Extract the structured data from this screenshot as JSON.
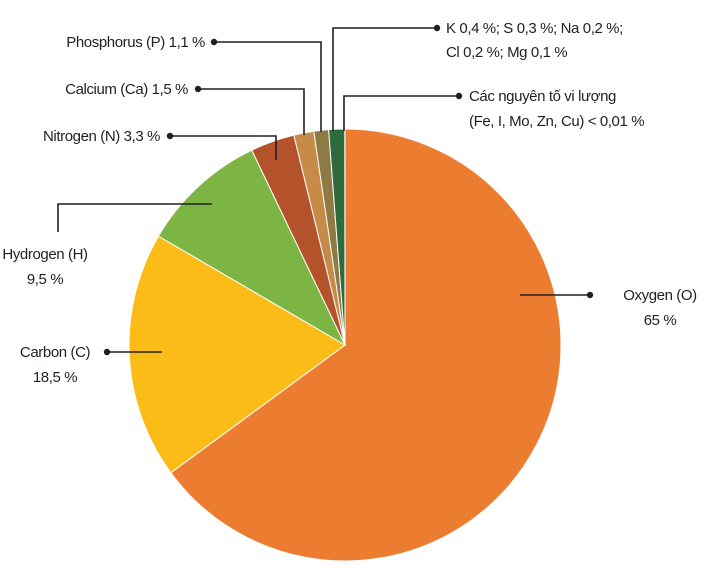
{
  "chart_data": {
    "type": "pie",
    "slices": [
      {
        "name": "Oxygen (O)",
        "value": 65,
        "value_label": "65 %",
        "color": "#ec7c30"
      },
      {
        "name": "Carbon (C)",
        "value": 18.5,
        "value_label": "18,5 %",
        "color": "#fbbc18"
      },
      {
        "name": "Hydrogen (H)",
        "value": 9.5,
        "value_label": "9,5 %",
        "color": "#7db544"
      },
      {
        "name": "Nitrogen (N)",
        "value": 3.3,
        "value_label": "3,3 %",
        "color": "#b4532b"
      },
      {
        "name": "Calcium (Ca)",
        "value": 1.5,
        "value_label": "1,5 %",
        "color": "#c68b47"
      },
      {
        "name": "Phosphorus (P)",
        "value": 1.1,
        "value_label": "1,1 %",
        "color": "#8d7a44"
      },
      {
        "parts": [
          {
            "name": "K",
            "value": 0.4,
            "value_label": "0,4 %;"
          },
          {
            "name": "S",
            "value": 0.3,
            "value_label": "0,3 %;"
          },
          {
            "name": "Na",
            "value": 0.2,
            "value_label": "0,2 %;"
          },
          {
            "name": "Cl",
            "value": 0.2,
            "value_label": "0,2 %;"
          },
          {
            "name": "Mg",
            "value": 0.1,
            "value_label": "0,1 %"
          }
        ],
        "color": "#2f6b3c"
      },
      {
        "name": "Các nguyên tố vi lượng",
        "detail": "(Fe, I, Mo, Zn, Cu)",
        "value": 0.01,
        "value_label": "< 0,01 %",
        "color": "#f6c07a"
      }
    ]
  }
}
